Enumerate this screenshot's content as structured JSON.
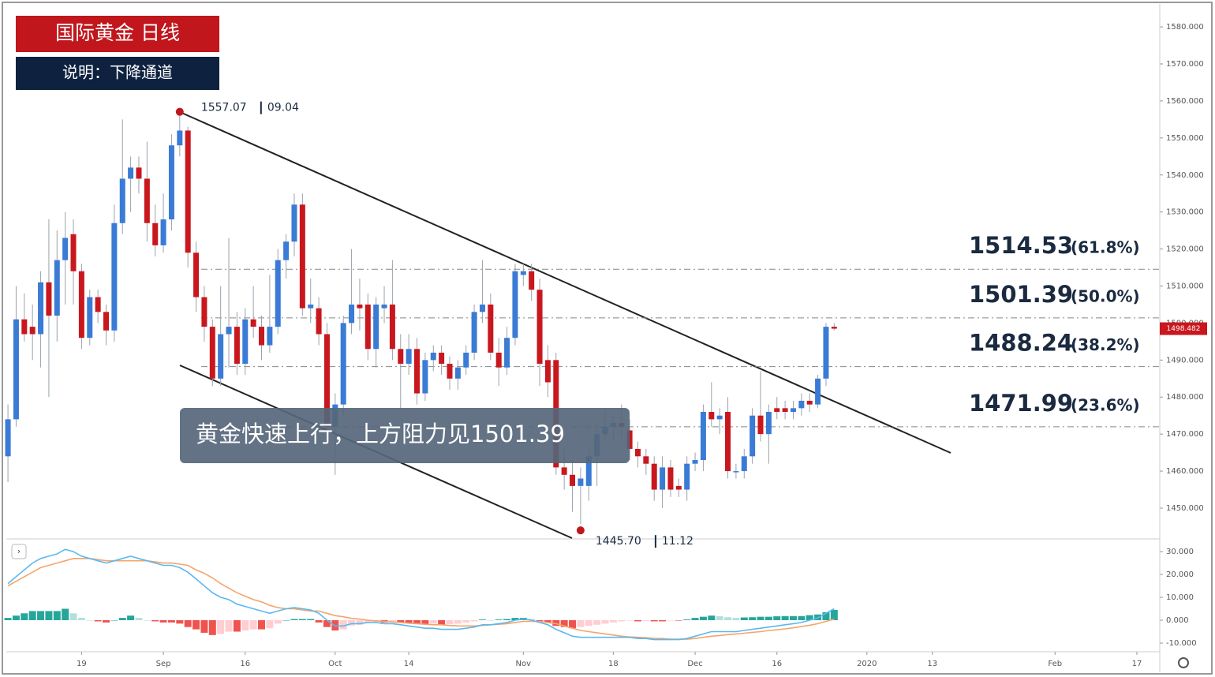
{
  "chart_data": {
    "type": "candlestick",
    "title": "国际黄金 日线",
    "subtitle": "说明：下降通道",
    "annotation": "黄金快速上行，上方阻力见1501.39",
    "up_color": "#3a7bd5",
    "down_color": "#c9171e",
    "candles": [
      [
        1464,
        1478,
        1457,
        1474
      ],
      [
        1474,
        1510,
        1472,
        1501
      ],
      [
        1501,
        1508,
        1495,
        1497
      ],
      [
        1499,
        1505,
        1490,
        1497
      ],
      [
        1497,
        1514,
        1488,
        1511
      ],
      [
        1511,
        1528,
        1480,
        1502
      ],
      [
        1502,
        1525,
        1495,
        1517
      ],
      [
        1517,
        1530,
        1505,
        1523
      ],
      [
        1524,
        1528,
        1505,
        1514
      ],
      [
        1514,
        1516,
        1493,
        1496
      ],
      [
        1496,
        1509,
        1494,
        1507
      ],
      [
        1507,
        1509,
        1500,
        1503
      ],
      [
        1503,
        1505,
        1494,
        1498
      ],
      [
        1498,
        1532,
        1495,
        1527
      ],
      [
        1527,
        1555,
        1524,
        1539
      ],
      [
        1539,
        1545,
        1530,
        1542
      ],
      [
        1542,
        1545,
        1535,
        1539
      ],
      [
        1539,
        1549,
        1522,
        1527
      ],
      [
        1527,
        1532,
        1518,
        1521
      ],
      [
        1521,
        1535,
        1519,
        1528
      ],
      [
        1528,
        1551,
        1525,
        1548
      ],
      [
        1548,
        1557.07,
        1545,
        1552
      ],
      [
        1552,
        1553,
        1515,
        1519
      ],
      [
        1519,
        1522,
        1503,
        1507
      ],
      [
        1507,
        1510,
        1495,
        1499
      ],
      [
        1499,
        1501,
        1483,
        1485
      ],
      [
        1485,
        1510,
        1483,
        1497
      ],
      [
        1497,
        1523,
        1488,
        1499
      ],
      [
        1499,
        1503,
        1486,
        1489
      ],
      [
        1489,
        1504,
        1486,
        1501
      ],
      [
        1501,
        1510,
        1496,
        1499
      ],
      [
        1499,
        1502,
        1490,
        1494
      ],
      [
        1494,
        1513,
        1492,
        1499
      ],
      [
        1499,
        1520,
        1497,
        1517
      ],
      [
        1517,
        1524,
        1512,
        1522
      ],
      [
        1522,
        1535,
        1518,
        1532
      ],
      [
        1532,
        1535,
        1502,
        1504
      ],
      [
        1504,
        1512,
        1500,
        1505
      ],
      [
        1504,
        1507,
        1494,
        1497
      ],
      [
        1497,
        1500,
        1470,
        1472
      ],
      [
        1472,
        1481,
        1459,
        1478
      ],
      [
        1478,
        1502,
        1475,
        1500
      ],
      [
        1500,
        1520,
        1497,
        1505
      ],
      [
        1505,
        1512,
        1498,
        1504
      ],
      [
        1505,
        1508,
        1490,
        1493
      ],
      [
        1493,
        1507,
        1488,
        1505
      ],
      [
        1504,
        1510,
        1500,
        1505
      ],
      [
        1505,
        1517,
        1490,
        1493
      ],
      [
        1493,
        1497,
        1477,
        1489
      ],
      [
        1489,
        1497,
        1486,
        1493
      ],
      [
        1493,
        1496,
        1478,
        1481
      ],
      [
        1481,
        1492,
        1479,
        1490
      ],
      [
        1490,
        1494,
        1487,
        1492
      ],
      [
        1492,
        1494,
        1486,
        1489
      ],
      [
        1489,
        1491,
        1482,
        1485
      ],
      [
        1485,
        1490,
        1482,
        1488
      ],
      [
        1488,
        1494,
        1486,
        1492
      ],
      [
        1492,
        1505,
        1490,
        1503
      ],
      [
        1503,
        1517,
        1500,
        1505
      ],
      [
        1505,
        1508,
        1490,
        1492
      ],
      [
        1492,
        1496,
        1483,
        1488
      ],
      [
        1488,
        1499,
        1486,
        1496
      ],
      [
        1496,
        1516,
        1494,
        1514
      ],
      [
        1513,
        1516,
        1510,
        1514
      ],
      [
        1514,
        1516,
        1506,
        1509
      ],
      [
        1509,
        1512,
        1483,
        1489
      ],
      [
        1490,
        1494,
        1480,
        1484
      ],
      [
        1490,
        1492,
        1459,
        1461
      ],
      [
        1461,
        1466,
        1455,
        1459
      ],
      [
        1459,
        1463,
        1449,
        1456
      ],
      [
        1456,
        1461,
        1445.7,
        1458
      ],
      [
        1456,
        1466,
        1452,
        1464
      ],
      [
        1464,
        1473,
        1456,
        1470
      ],
      [
        1470,
        1476,
        1468,
        1472
      ],
      [
        1472,
        1475,
        1468,
        1473
      ],
      [
        1473,
        1478,
        1469,
        1472
      ],
      [
        1471,
        1474,
        1463,
        1466
      ],
      [
        1466,
        1468,
        1461,
        1464
      ],
      [
        1464,
        1466,
        1459,
        1462
      ],
      [
        1462,
        1464,
        1452,
        1455
      ],
      [
        1455,
        1464,
        1450,
        1461
      ],
      [
        1461,
        1463,
        1453,
        1455
      ],
      [
        1456,
        1458,
        1453,
        1455
      ],
      [
        1455,
        1464,
        1452,
        1462
      ],
      [
        1462,
        1465,
        1460,
        1463
      ],
      [
        1463,
        1478,
        1460,
        1476
      ],
      [
        1476,
        1484,
        1472,
        1474
      ],
      [
        1474,
        1477,
        1470,
        1475
      ],
      [
        1476,
        1480,
        1458,
        1460
      ],
      [
        1460,
        1462,
        1458,
        1460
      ],
      [
        1460,
        1466,
        1458,
        1464
      ],
      [
        1464,
        1477,
        1462,
        1475
      ],
      [
        1475,
        1487,
        1468,
        1470
      ],
      [
        1470,
        1478,
        1462,
        1476
      ],
      [
        1477,
        1480,
        1474,
        1476
      ],
      [
        1477,
        1479,
        1474,
        1476
      ],
      [
        1476,
        1479,
        1474,
        1477
      ],
      [
        1477,
        1481,
        1475,
        1479
      ],
      [
        1479,
        1481,
        1476,
        1478
      ],
      [
        1478,
        1486,
        1477,
        1485
      ],
      [
        1485,
        1500,
        1483,
        1499
      ],
      [
        1499,
        1500,
        1498,
        1498.482
      ]
    ],
    "last_price": 1498.482,
    "xlim": [
      -0.2,
      140.8
    ],
    "xticks": [
      {
        "value": 9,
        "label": "19"
      },
      {
        "value": 19,
        "label": "Sep"
      },
      {
        "value": 29,
        "label": "16"
      },
      {
        "value": 40,
        "label": "Oct"
      },
      {
        "value": 49,
        "label": "14"
      },
      {
        "value": 63,
        "label": "Nov"
      },
      {
        "value": 74,
        "label": "18"
      },
      {
        "value": 84,
        "label": "Dec"
      },
      {
        "value": 94,
        "label": "16"
      },
      {
        "value": 105,
        "label": "2020"
      },
      {
        "value": 113,
        "label": "13"
      },
      {
        "value": 128,
        "label": "Feb"
      },
      {
        "value": 138,
        "label": "17"
      }
    ],
    "ylim": [
      1441.9,
      1586.2
    ],
    "yticks": [
      {
        "value": 1450,
        "label": "1450.000"
      },
      {
        "value": 1460,
        "label": "1460.000"
      },
      {
        "value": 1470,
        "label": "1470.000"
      },
      {
        "value": 1480,
        "label": "1480.000"
      },
      {
        "value": 1490,
        "label": "1490.000"
      },
      {
        "value": 1500,
        "label": "1500.000"
      },
      {
        "value": 1510,
        "label": "1510.000"
      },
      {
        "value": 1520,
        "label": "1520.000"
      },
      {
        "value": 1530,
        "label": "1530.000"
      },
      {
        "value": 1540,
        "label": "1540.000"
      },
      {
        "value": 1550,
        "label": "1550.000"
      },
      {
        "value": 1560,
        "label": "1560.000"
      },
      {
        "value": 1570,
        "label": "1570.000"
      },
      {
        "value": 1580,
        "label": "1580.000"
      }
    ],
    "levels": [
      1514.53,
      1501.39,
      1488.24,
      1471.99
    ],
    "level_labels": [
      "(61.8%)",
      "(50.0%)",
      "(38.2%)",
      "(23.6%)"
    ],
    "extremes": [
      {
        "index": 21,
        "price": 1557.07,
        "date": "09.04"
      },
      {
        "index": 70,
        "price": {
          "value": 1445.7,
          "label": "1445.70"
        },
        "date": "11.12"
      }
    ],
    "macd": {
      "ylim": [
        -13.8,
        35.2
      ],
      "yticks": [
        {
          "value": 30,
          "label": "30.000"
        },
        {
          "value": 20,
          "label": "20.000"
        },
        {
          "value": 10,
          "label": "10.000"
        },
        {
          "value": 0,
          "label": "0.000"
        },
        {
          "value": -10,
          "label": "-10.000"
        }
      ],
      "macd_color": "#5bb8f0",
      "signal_color": "#f5a46b",
      "histogram_colors": [
        "#26a69a",
        "#b2dfdb",
        "#ffcdd2",
        "#ef5350"
      ],
      "macd": [
        16,
        19,
        22,
        25,
        27,
        28,
        29,
        31,
        30,
        28,
        27,
        26,
        25,
        26,
        27,
        28,
        27,
        26,
        25,
        24,
        24,
        23,
        21,
        18,
        15,
        12,
        10,
        9,
        7,
        6,
        5,
        4,
        3,
        4,
        5,
        5.5,
        5,
        4.5,
        3,
        0,
        -2.5,
        -2.5,
        -1.5,
        -1.5,
        -1,
        -1,
        -1.5,
        -1.5,
        -2,
        -2.5,
        -3,
        -3.5,
        -3.5,
        -4,
        -4,
        -4,
        -3.5,
        -3,
        -2,
        -2,
        -1.5,
        -1,
        0,
        0.5,
        0,
        -1,
        -2,
        -4,
        -5.5,
        -7,
        -7.5,
        -7.5,
        -7.5,
        -7.5,
        -7.5,
        -7.5,
        -7.5,
        -8,
        -8,
        -8.5,
        -8.5,
        -8.5,
        -8.5,
        -8,
        -7,
        -6,
        -5,
        -5,
        -5,
        -5,
        -4.5,
        -4,
        -3.5,
        -3,
        -2.5,
        -2,
        -1.5,
        -1,
        0,
        1,
        3,
        5
      ],
      "signal": [
        15,
        17,
        19,
        21,
        23,
        24,
        25,
        26,
        27,
        27,
        27,
        26.5,
        26,
        26,
        26,
        26,
        26,
        26,
        25.5,
        25,
        25,
        24.5,
        24,
        22,
        20.5,
        18.5,
        16,
        14,
        12,
        10.5,
        9,
        8,
        6.5,
        5.5,
        5,
        5,
        4.5,
        4,
        4,
        3,
        2,
        1.5,
        0.8,
        0.5,
        0,
        -0.3,
        -0.5,
        -0.8,
        -1,
        -1.3,
        -1.5,
        -1.8,
        -2,
        -2,
        -2.3,
        -2.5,
        -2.5,
        -2.5,
        -2.3,
        -2,
        -1.8,
        -1.5,
        -1,
        -0.5,
        -0.5,
        -0.6,
        -1,
        -1.5,
        -2.5,
        -3.5,
        -4.5,
        -5,
        -5.5,
        -6,
        -6.5,
        -7,
        -7.3,
        -7.5,
        -7.7,
        -8,
        -8,
        -8.3,
        -8.3,
        -8.3,
        -8,
        -7.5,
        -7,
        -6.7,
        -6.3,
        -6,
        -5.7,
        -5.3,
        -5,
        -4.5,
        -4.2,
        -3.8,
        -3.3,
        -2.8,
        -2.2,
        -1.5,
        -0.5,
        0.5
      ],
      "histogram": [
        1,
        2,
        3,
        4,
        4,
        4,
        4,
        5,
        3,
        1,
        0,
        -0.5,
        -1,
        0,
        1,
        2,
        1,
        0,
        -0.5,
        -1,
        -1,
        -1.5,
        -3,
        -4,
        -5.5,
        -6.5,
        -6,
        -5,
        -5,
        -4.5,
        -4,
        -4,
        -3.5,
        -1.5,
        0,
        0.5,
        0.5,
        0.5,
        -1,
        -3,
        -4.5,
        -4,
        -2.3,
        -2,
        -1,
        -0.7,
        -1,
        -0.7,
        -1,
        -1.2,
        -1.5,
        -1.7,
        -1.5,
        -2,
        -1.7,
        -1.5,
        -1,
        -0.5,
        0.3,
        0,
        0.3,
        0.5,
        1,
        1,
        0.5,
        -0.4,
        -1,
        -2.5,
        -3,
        -3.5,
        -3,
        -2.5,
        -2,
        -1.5,
        -1,
        -0.5,
        -0.2,
        -0.5,
        -0.3,
        -0.5,
        -0.5,
        -0.2,
        -0.2,
        0.3,
        1,
        1.5,
        2,
        1.7,
        1.3,
        1,
        1.2,
        1.3,
        1.5,
        1.5,
        1.7,
        1.8,
        1.8,
        1.8,
        2.2,
        2.5,
        3.5,
        4.5
      ]
    }
  }
}
